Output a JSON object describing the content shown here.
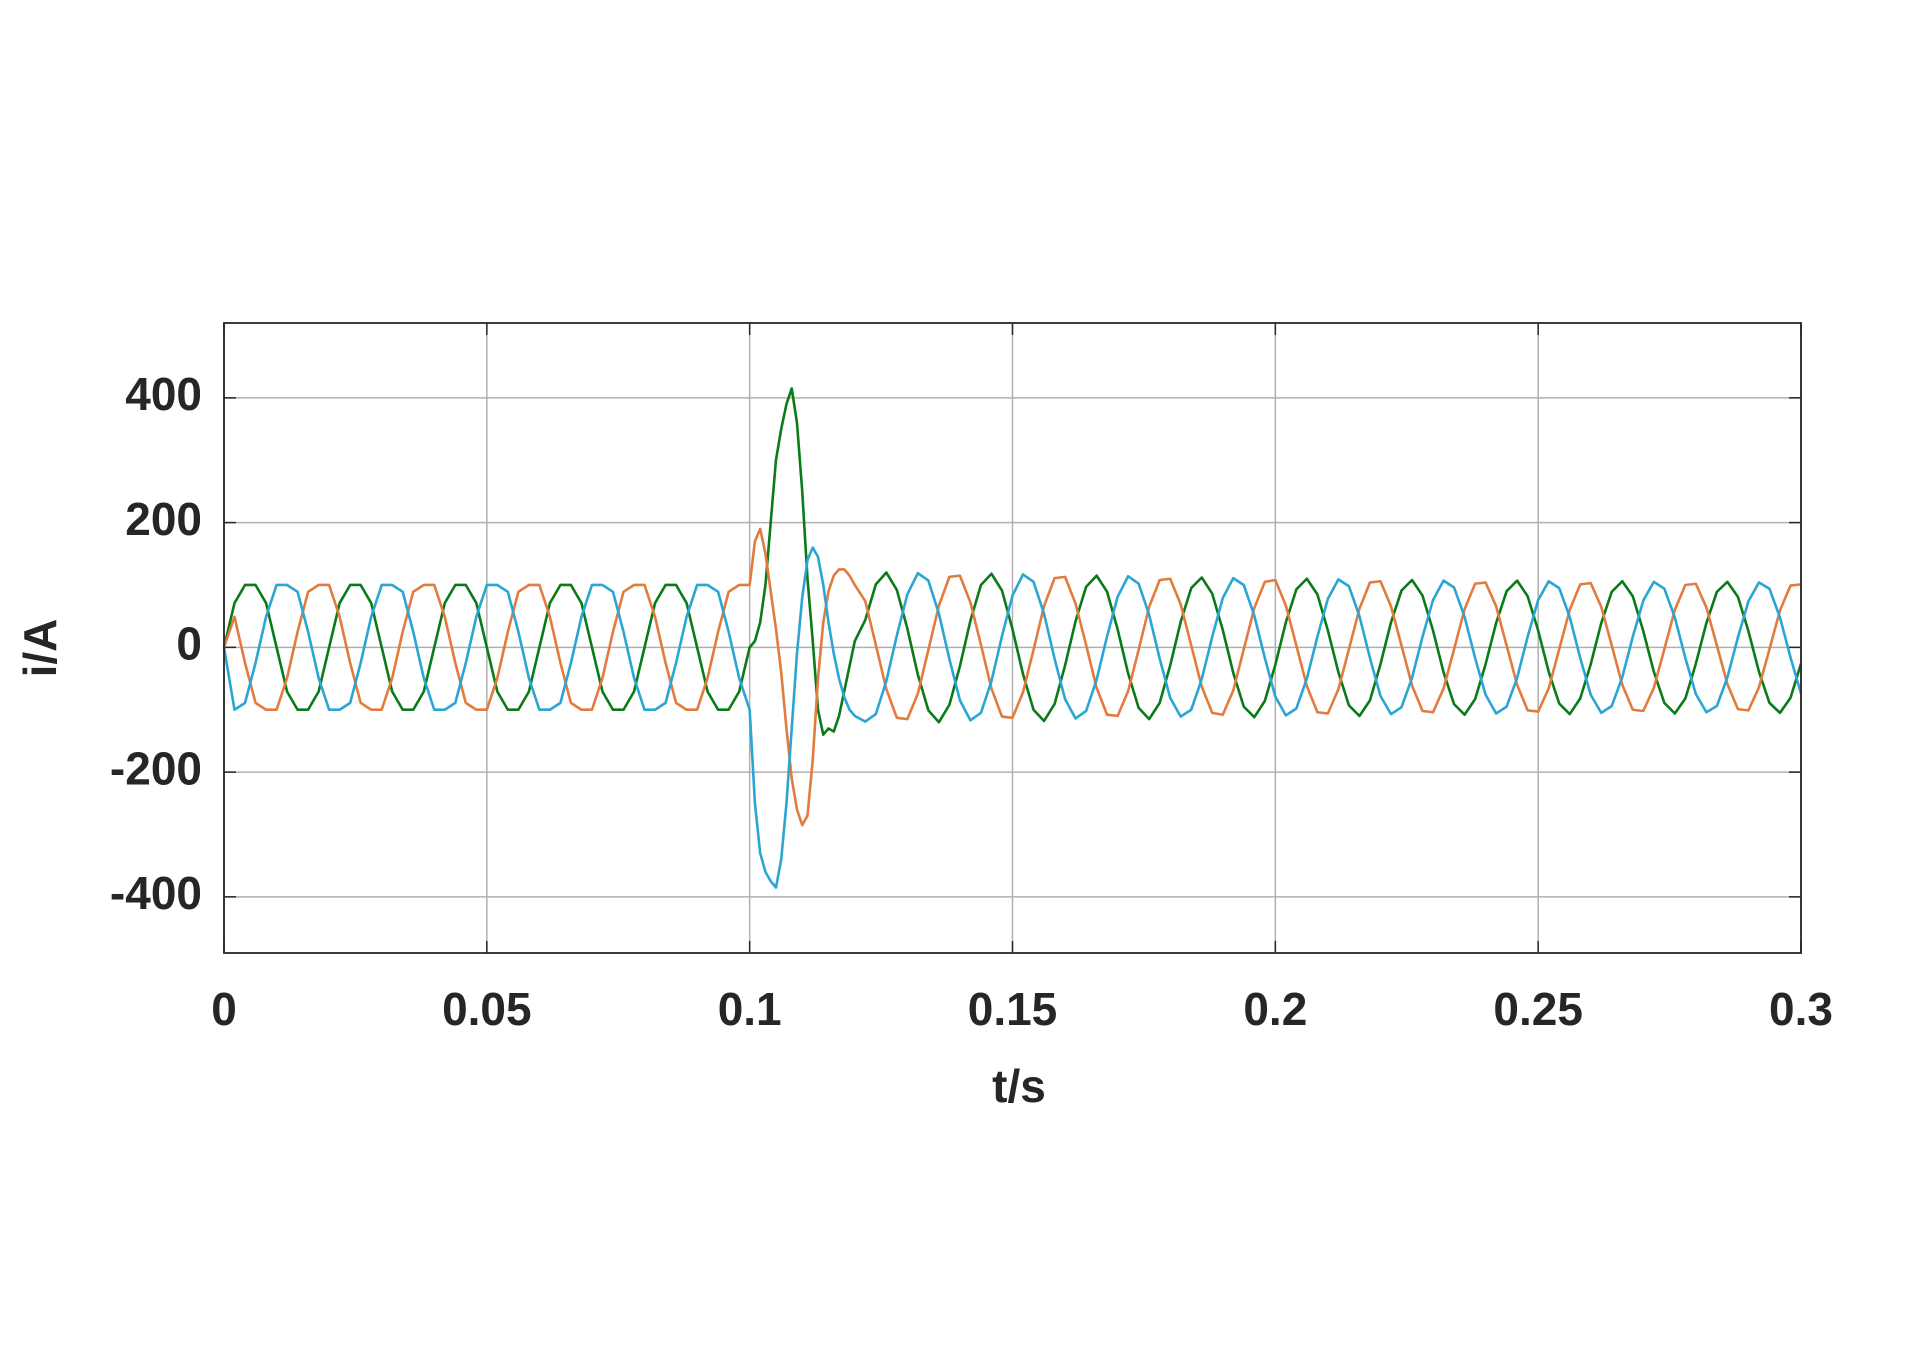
{
  "chart_data": {
    "type": "line",
    "x_label": "t/s",
    "y_label": "i/A",
    "xlim": [
      0,
      0.3
    ],
    "ylim": [
      -490,
      520
    ],
    "xticks": [
      0,
      0.05,
      0.1,
      0.15,
      0.2,
      0.25,
      0.3
    ],
    "yticks": [
      -400,
      -200,
      0,
      200,
      400
    ],
    "grid": true,
    "x": [
      0,
      0.002,
      0.004,
      0.006,
      0.008,
      0.01,
      0.012,
      0.014,
      0.016,
      0.018,
      0.02,
      0.022,
      0.024,
      0.026,
      0.028,
      0.03,
      0.032,
      0.034,
      0.036,
      0.038,
      0.04,
      0.042,
      0.044,
      0.046,
      0.048,
      0.05,
      0.052,
      0.054,
      0.056,
      0.058,
      0.06,
      0.062,
      0.064,
      0.066,
      0.068,
      0.07,
      0.072,
      0.074,
      0.076,
      0.078,
      0.08,
      0.082,
      0.084,
      0.086,
      0.088,
      0.09,
      0.092,
      0.094,
      0.096,
      0.098,
      0.1,
      0.101,
      0.102,
      0.103,
      0.104,
      0.105,
      0.106,
      0.107,
      0.108,
      0.109,
      0.11,
      0.111,
      0.112,
      0.113,
      0.114,
      0.115,
      0.116,
      0.117,
      0.118,
      0.119,
      0.12,
      0.122,
      0.124,
      0.126,
      0.128,
      0.13,
      0.132,
      0.134,
      0.136,
      0.138,
      0.14,
      0.142,
      0.144,
      0.146,
      0.148,
      0.15,
      0.152,
      0.154,
      0.156,
      0.158,
      0.16,
      0.162,
      0.164,
      0.166,
      0.168,
      0.17,
      0.172,
      0.174,
      0.176,
      0.178,
      0.18,
      0.182,
      0.184,
      0.186,
      0.188,
      0.19,
      0.192,
      0.194,
      0.196,
      0.198,
      0.2,
      0.202,
      0.204,
      0.206,
      0.208,
      0.21,
      0.212,
      0.214,
      0.216,
      0.218,
      0.22,
      0.222,
      0.224,
      0.226,
      0.228,
      0.23,
      0.232,
      0.234,
      0.236,
      0.238,
      0.24,
      0.242,
      0.244,
      0.246,
      0.248,
      0.25,
      0.252,
      0.254,
      0.256,
      0.258,
      0.26,
      0.262,
      0.264,
      0.266,
      0.268,
      0.27,
      0.272,
      0.274,
      0.276,
      0.278,
      0.28,
      0.282,
      0.284,
      0.286,
      0.288,
      0.29,
      0.292,
      0.294,
      0.296,
      0.298,
      0.3
    ],
    "series": [
      {
        "color": "#0b7a18",
        "values": [
          0,
          71,
          100,
          100,
          71,
          0,
          -71,
          -100,
          -100,
          -71,
          0,
          71,
          100,
          100,
          71,
          0,
          -71,
          -100,
          -100,
          -71,
          0,
          71,
          100,
          100,
          71,
          0,
          -71,
          -100,
          -100,
          -71,
          0,
          71,
          100,
          100,
          71,
          0,
          -71,
          -100,
          -100,
          -71,
          0,
          71,
          100,
          100,
          71,
          0,
          -71,
          -100,
          -100,
          -71,
          0,
          10,
          40,
          100,
          200,
          300,
          350,
          390,
          415,
          360,
          250,
          110,
          10,
          -100,
          -140,
          -130,
          -135,
          -110,
          -70,
          -30,
          10,
          44,
          101,
          120,
          92,
          30,
          -44,
          -101,
          -120,
          -92,
          -30,
          43,
          100,
          118,
          91,
          29,
          -43,
          -100,
          -118,
          -91,
          -29,
          42,
          97,
          115,
          89,
          29,
          -42,
          -97,
          -115,
          -89,
          -29,
          41,
          95,
          112,
          86,
          28,
          -41,
          -95,
          -112,
          -86,
          -28,
          40,
          93,
          110,
          85,
          27,
          -40,
          -93,
          -110,
          -85,
          -27,
          40,
          91,
          108,
          83,
          27,
          -40,
          -91,
          -108,
          -83,
          -27,
          39,
          90,
          107,
          82,
          27,
          -39,
          -90,
          -107,
          -82,
          -27,
          39,
          89,
          106,
          82,
          26,
          -39,
          -89,
          -106,
          -82,
          -26,
          39,
          89,
          105,
          81,
          26,
          -39,
          -89,
          -105,
          -81,
          -26
        ]
      },
      {
        "color": "#e27b3e",
        "values": [
          0,
          49,
          -25,
          -89,
          -100,
          -100,
          -49,
          25,
          89,
          100,
          100,
          49,
          -25,
          -89,
          -100,
          -100,
          -49,
          25,
          89,
          100,
          100,
          49,
          -25,
          -89,
          -100,
          -100,
          -49,
          25,
          89,
          100,
          100,
          49,
          -25,
          -89,
          -100,
          -100,
          -49,
          25,
          89,
          100,
          100,
          49,
          -25,
          -89,
          -100,
          -100,
          -49,
          25,
          89,
          100,
          100,
          170,
          190,
          150,
          90,
          30,
          -40,
          -130,
          -210,
          -260,
          -285,
          -270,
          -180,
          -50,
          40,
          90,
          115,
          125,
          125,
          115,
          100,
          74,
          4,
          -67,
          -113,
          -115,
          -74,
          -4,
          67,
          113,
          115,
          72,
          4,
          -66,
          -111,
          -113,
          -72,
          -4,
          66,
          111,
          113,
          70,
          4,
          -65,
          -108,
          -110,
          -70,
          -4,
          65,
          108,
          110,
          69,
          3,
          -63,
          -105,
          -108,
          -69,
          -3,
          63,
          105,
          108,
          67,
          3,
          -62,
          -104,
          -106,
          -67,
          -3,
          62,
          104,
          106,
          66,
          3,
          -61,
          -102,
          -104,
          -66,
          -3,
          61,
          102,
          104,
          66,
          3,
          -60,
          -101,
          -103,
          -66,
          -3,
          60,
          101,
          103,
          65,
          3,
          -60,
          -100,
          -102,
          -65,
          -3,
          60,
          100,
          102,
          64,
          3,
          -59,
          -99,
          -101,
          -64,
          -3,
          59,
          99,
          101
        ]
      },
      {
        "color": "#2ba5d3",
        "values": [
          0,
          -100,
          -89,
          -25,
          49,
          100,
          100,
          89,
          25,
          -49,
          -100,
          -100,
          -89,
          -25,
          49,
          100,
          100,
          89,
          25,
          -49,
          -100,
          -100,
          -89,
          -25,
          49,
          100,
          100,
          89,
          25,
          -49,
          -100,
          -100,
          -89,
          -25,
          49,
          100,
          100,
          89,
          25,
          -49,
          -100,
          -100,
          -89,
          -25,
          49,
          100,
          100,
          89,
          25,
          -49,
          -100,
          -250,
          -330,
          -360,
          -375,
          -385,
          -340,
          -250,
          -130,
          -10,
          80,
          140,
          160,
          145,
          100,
          40,
          -10,
          -50,
          -80,
          -100,
          -110,
          -119,
          -107,
          -54,
          19,
          85,
          119,
          107,
          54,
          -19,
          -85,
          -117,
          -105,
          -54,
          18,
          83,
          117,
          105,
          54,
          -18,
          -83,
          -114,
          -102,
          -52,
          18,
          81,
          114,
          102,
          52,
          -18,
          -81,
          -111,
          -100,
          -51,
          17,
          79,
          111,
          100,
          51,
          -17,
          -79,
          -109,
          -98,
          -50,
          17,
          78,
          109,
          98,
          50,
          -17,
          -78,
          -107,
          -96,
          -49,
          17,
          76,
          107,
          96,
          49,
          -17,
          -76,
          -106,
          -95,
          -49,
          17,
          76,
          106,
          95,
          49,
          -17,
          -76,
          -105,
          -94,
          -48,
          17,
          75,
          105,
          94,
          48,
          -17,
          -75,
          -104,
          -94,
          -48,
          16,
          74,
          104,
          94,
          48,
          -16,
          -74
        ]
      }
    ]
  }
}
